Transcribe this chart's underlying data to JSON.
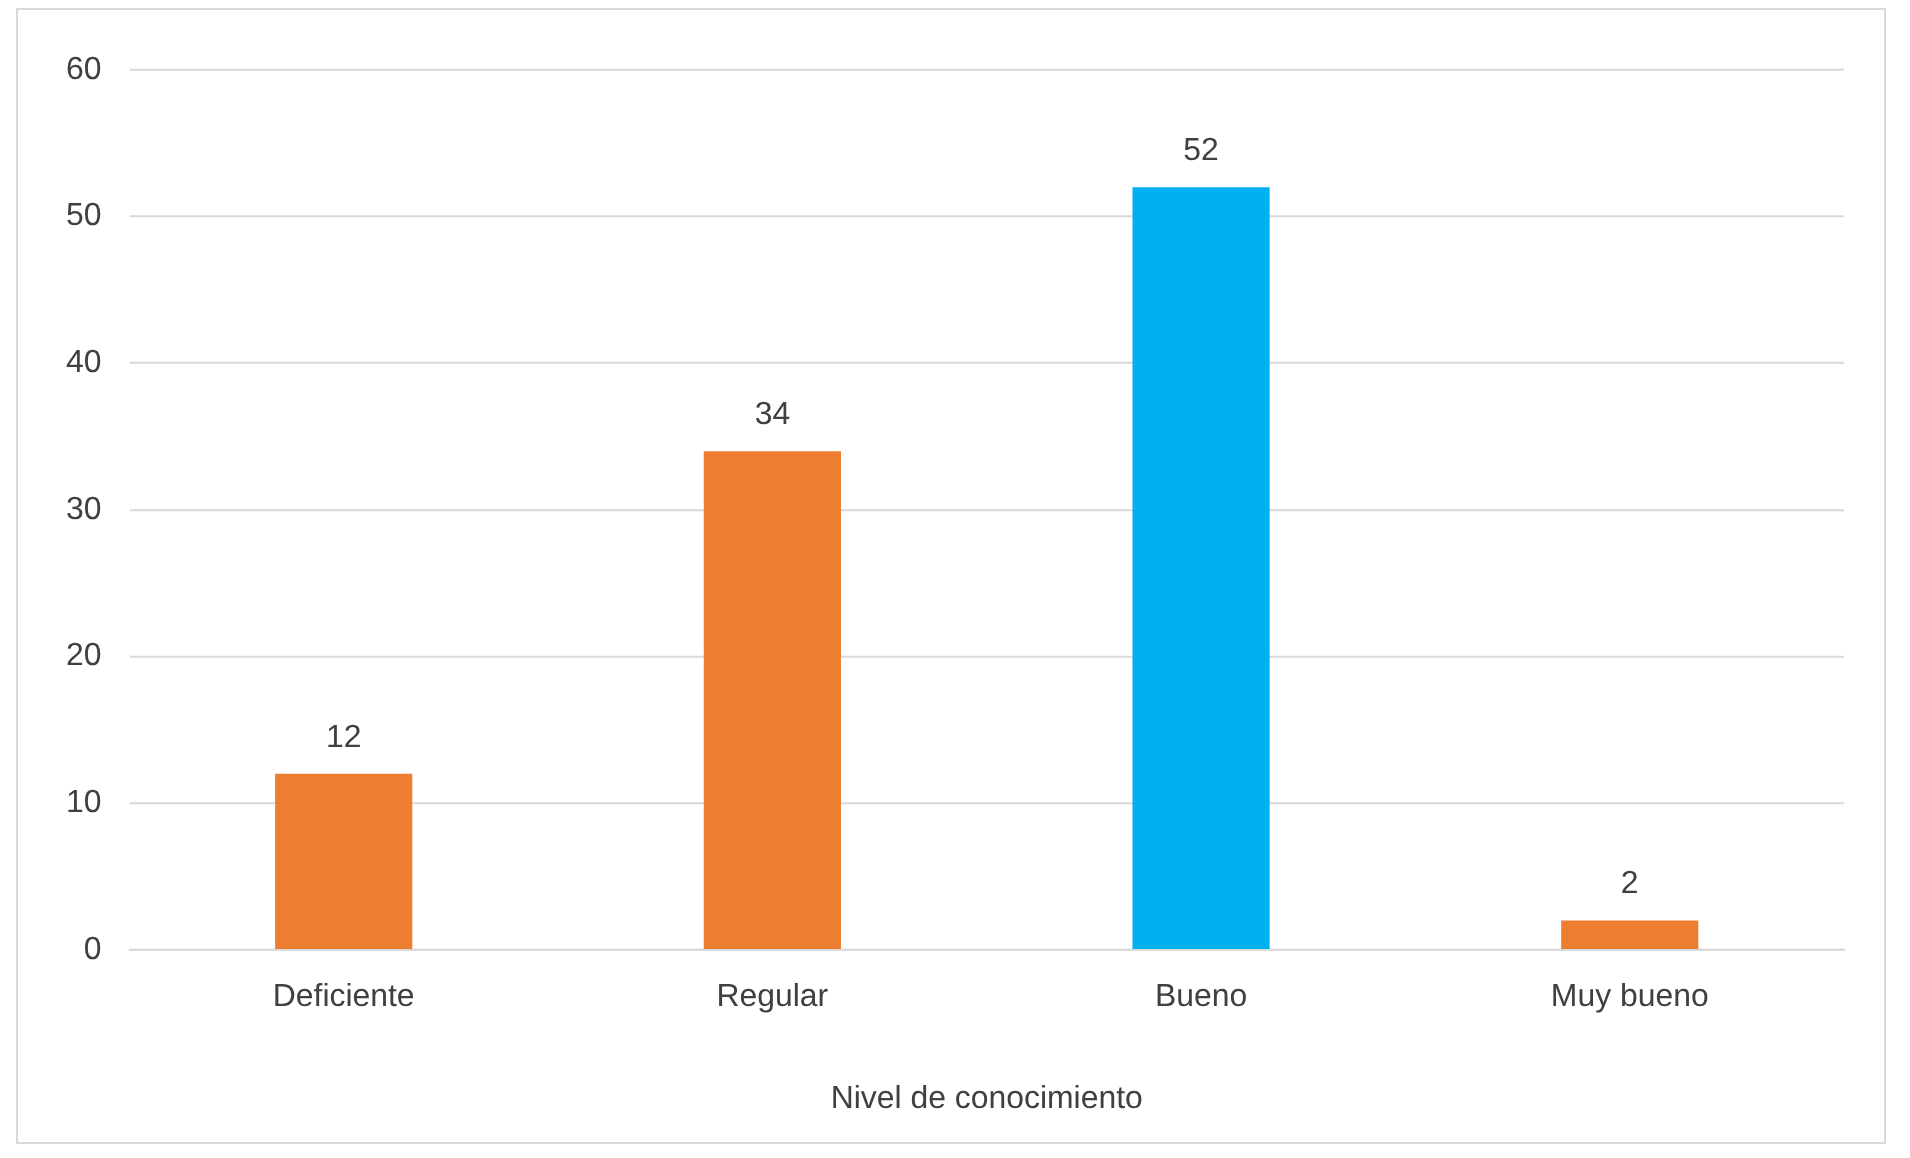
{
  "chart_data": {
    "type": "bar",
    "xlabel": "Nivel de conocimiento",
    "categories": [
      "Deficiente",
      "Regular",
      "Bueno",
      "Muy bueno"
    ],
    "values": [
      12,
      34,
      52,
      2
    ],
    "colors": [
      "#ed7d31",
      "#ed7d31",
      "#00b0f0",
      "#ed7d31"
    ],
    "ylim": [
      0,
      60
    ],
    "yticks": [
      0,
      10,
      20,
      30,
      40,
      50,
      60
    ],
    "grid": "y",
    "data_labels": true,
    "legend": false
  }
}
